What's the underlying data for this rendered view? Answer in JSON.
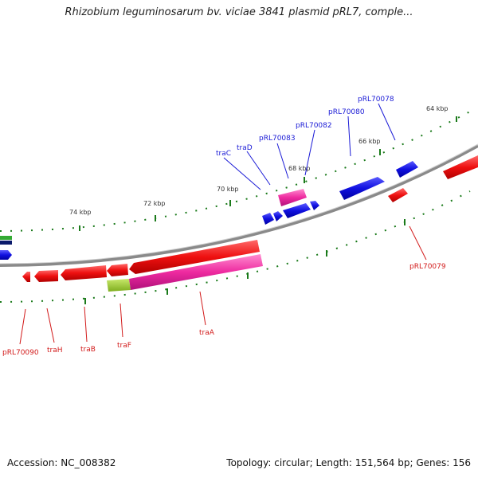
{
  "title": "Rhizobium leguminosarum bv. viciae 3841 plasmid pRL7, comple...",
  "footer": {
    "accession": "Accession: NC_008382",
    "summary": "Topology: circular; Length: 151,564 bp; Genes: 156"
  },
  "colors": {
    "forward_gene": "#1010e0",
    "reverse_gene": "#ee1010",
    "highlight_gene": "#ee2aa0",
    "partial_gene": "#9acd32",
    "backbone": "#8a8a8a",
    "tick": "#1a7a1a"
  },
  "tick_labels": [
    "74 kbp",
    "72 kbp",
    "70 kbp",
    "68 kbp",
    "66 kbp",
    "64 kbp"
  ],
  "gene_labels_top": [
    "traC",
    "traD",
    "pRL70083",
    "pRL70082",
    "pRL70080",
    "pRL70078"
  ],
  "gene_labels_bottom": [
    "pRL70090",
    "traH",
    "traB",
    "traF",
    "traA",
    "pRL70079"
  ]
}
